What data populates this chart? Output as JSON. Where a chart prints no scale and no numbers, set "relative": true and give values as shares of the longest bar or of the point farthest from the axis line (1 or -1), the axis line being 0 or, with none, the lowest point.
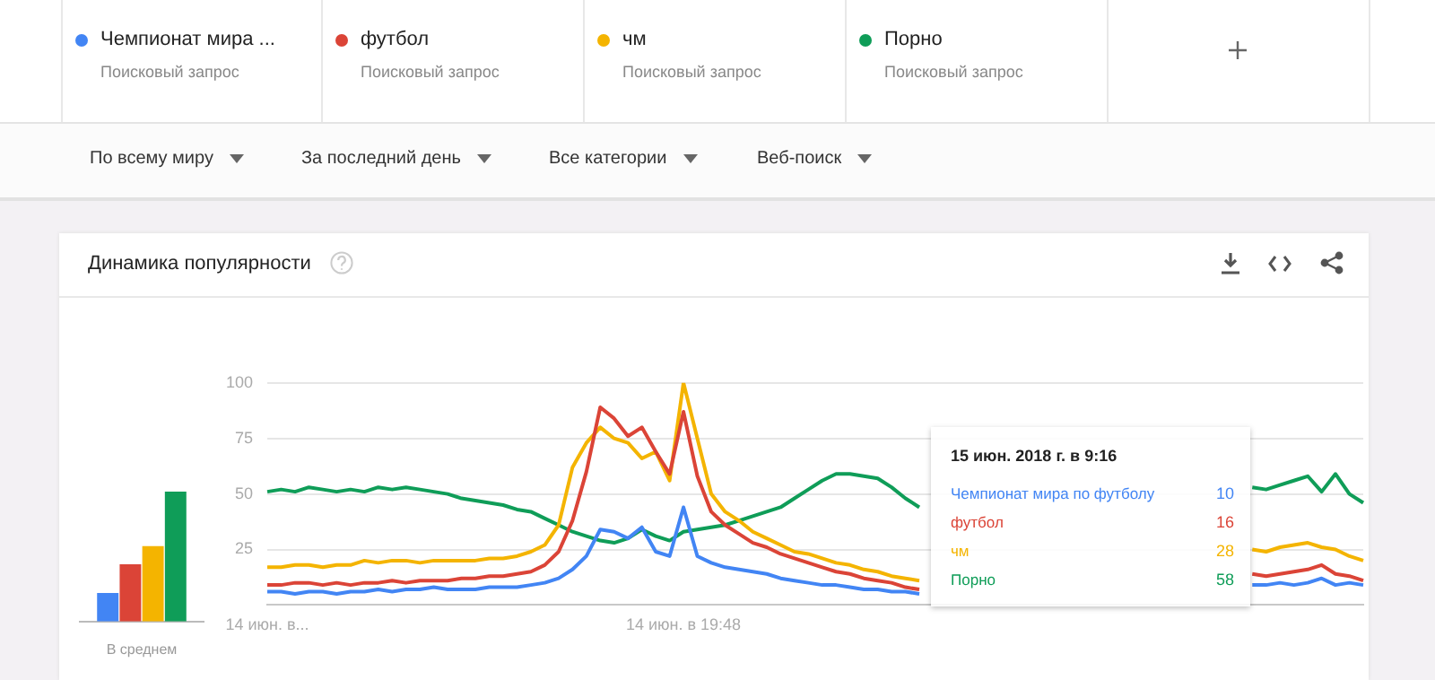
{
  "chart_data": [
    {
      "type": "bar",
      "categories": [
        "В среднем"
      ],
      "relative": true,
      "series": [
        {
          "color": "#4285f4",
          "values": [
            0.22
          ]
        },
        {
          "color": "#db4437",
          "values": [
            0.44
          ]
        },
        {
          "color": "#f4b400",
          "values": [
            0.58
          ]
        },
        {
          "color": "#0f9d58",
          "values": [
            1
          ]
        }
      ]
    },
    {
      "type": "line",
      "title": "Динамика популярности",
      "legend": "top",
      "grid": "y",
      "ylim": [
        0,
        100
      ],
      "yticks": [
        25,
        50,
        75,
        100
      ],
      "categories": [
        "14 июн. в...",
        null,
        null,
        null,
        null,
        null,
        null,
        null,
        null,
        null,
        null,
        null,
        null,
        null,
        null,
        null,
        null,
        null,
        null,
        null,
        null,
        null,
        null,
        null,
        null,
        null,
        null,
        null,
        null,
        null,
        "14 июн. в 19:48",
        null,
        null,
        null,
        null,
        null,
        null,
        null,
        null,
        null,
        null,
        null,
        null,
        null,
        null,
        null,
        null,
        null,
        null,
        null,
        null,
        null,
        null,
        null,
        null,
        null,
        null,
        null,
        null,
        null,
        null,
        null,
        null,
        null,
        null,
        null,
        null,
        null,
        null,
        null,
        null,
        null,
        null,
        null,
        null,
        null,
        null,
        null,
        null,
        null
      ],
      "series": [
        {
          "name": "Чемпионат мира по футболу",
          "color": "#4285f4",
          "values": [
            6,
            6,
            5,
            6,
            6,
            5,
            6,
            6,
            7,
            6,
            7,
            7,
            8,
            7,
            7,
            7,
            8,
            8,
            8,
            9,
            10,
            12,
            16,
            22,
            34,
            33,
            30,
            35,
            24,
            22,
            44,
            22,
            19,
            17,
            16,
            15,
            14,
            12,
            11,
            10,
            9,
            9,
            8,
            7,
            7,
            6,
            6,
            5,
            null,
            null,
            null,
            null,
            null,
            null,
            null,
            null,
            null,
            null,
            null,
            null,
            null,
            null,
            null,
            null,
            null,
            null,
            null,
            null,
            null,
            null,
            null,
            9,
            9,
            10,
            9,
            10,
            12,
            9,
            10,
            9
          ]
        },
        {
          "name": "футбол",
          "color": "#db4437",
          "values": [
            9,
            9,
            10,
            10,
            9,
            10,
            9,
            10,
            10,
            11,
            10,
            11,
            11,
            11,
            12,
            12,
            13,
            13,
            14,
            15,
            18,
            24,
            38,
            60,
            89,
            84,
            76,
            80,
            69,
            59,
            87,
            58,
            42,
            36,
            32,
            28,
            26,
            23,
            21,
            19,
            17,
            15,
            14,
            12,
            11,
            10,
            8,
            7,
            null,
            null,
            null,
            null,
            null,
            null,
            null,
            null,
            null,
            null,
            null,
            null,
            null,
            null,
            null,
            null,
            null,
            null,
            null,
            null,
            null,
            null,
            null,
            14,
            13,
            14,
            15,
            16,
            18,
            14,
            13,
            11
          ]
        },
        {
          "name": "чм",
          "color": "#f4b400",
          "values": [
            17,
            17,
            18,
            18,
            17,
            18,
            18,
            20,
            19,
            20,
            20,
            19,
            20,
            20,
            20,
            20,
            21,
            21,
            22,
            24,
            27,
            36,
            62,
            73,
            80,
            75,
            73,
            66,
            69,
            56,
            100,
            75,
            50,
            42,
            38,
            33,
            30,
            27,
            24,
            23,
            21,
            19,
            18,
            16,
            15,
            13,
            12,
            11,
            null,
            null,
            null,
            null,
            null,
            null,
            null,
            null,
            null,
            null,
            null,
            null,
            null,
            null,
            null,
            null,
            null,
            null,
            null,
            null,
            null,
            null,
            null,
            25,
            24,
            26,
            27,
            28,
            26,
            25,
            22,
            20
          ]
        },
        {
          "name": "Порно",
          "color": "#0f9d58",
          "values": [
            51,
            52,
            51,
            53,
            52,
            51,
            52,
            51,
            53,
            52,
            53,
            52,
            51,
            50,
            48,
            47,
            46,
            45,
            43,
            42,
            39,
            36,
            33,
            31,
            29,
            28,
            30,
            34,
            31,
            29,
            33,
            34,
            35,
            36,
            38,
            40,
            42,
            44,
            48,
            52,
            56,
            59,
            59,
            58,
            57,
            53,
            48,
            44,
            null,
            null,
            null,
            null,
            null,
            null,
            null,
            null,
            null,
            null,
            null,
            null,
            null,
            null,
            null,
            null,
            null,
            null,
            null,
            null,
            null,
            null,
            null,
            53,
            52,
            54,
            56,
            58,
            51,
            59,
            50,
            46
          ]
        }
      ],
      "annotations": [
        "Поисковый запрос",
        "Поисковый запрос",
        "Поисковый запрос",
        "Поисковый запрос",
        "По всему миру",
        "За последний день",
        "Все категории",
        "Веб-поиск",
        "15 июн. 2018 г. в 9:16",
        "10",
        "16",
        "28",
        "58",
        "Чемпионат мира ..."
      ]
    }
  ]
}
